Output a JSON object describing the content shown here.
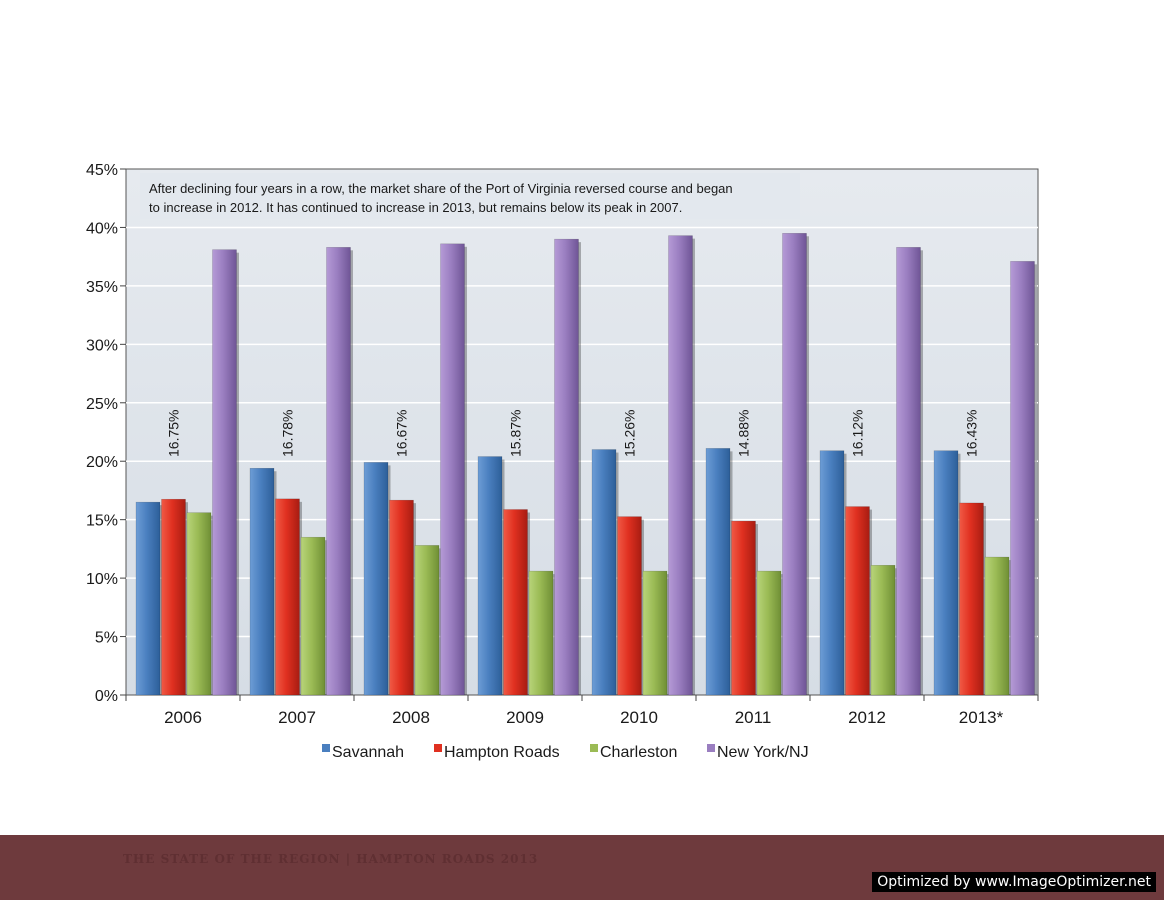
{
  "colors": {
    "Savannah": "#4a7fbf",
    "Hampton Roads": "#e03020",
    "Charleston": "#9bbb55",
    "New York/NJ": "#9a7ec0",
    "plot_background": "#dde3ea",
    "footer": "#6e3a3d"
  },
  "chart_data": {
    "type": "bar",
    "categories": [
      "2006",
      "2007",
      "2008",
      "2009",
      "2010",
      "2011",
      "2012",
      "2013*"
    ],
    "series": [
      {
        "name": "Savannah",
        "values": [
          16.5,
          19.4,
          19.9,
          20.4,
          21.0,
          21.1,
          20.9,
          20.9
        ]
      },
      {
        "name": "Hampton Roads",
        "values": [
          16.75,
          16.78,
          16.67,
          15.87,
          15.26,
          14.88,
          16.12,
          16.43
        ]
      },
      {
        "name": "Charleston",
        "values": [
          15.6,
          13.5,
          12.8,
          10.6,
          10.6,
          10.6,
          11.1,
          11.8
        ]
      },
      {
        "name": "New York/NJ",
        "values": [
          38.1,
          38.3,
          38.6,
          39.0,
          39.3,
          39.5,
          38.3,
          37.1
        ]
      }
    ],
    "data_labels": [
      "16.75%",
      "16.78%",
      "16.67%",
      "15.87%",
      "15.26%",
      "14.88%",
      "16.12%",
      "16.43%"
    ],
    "annotation": [
      "After declining four years in a row, the market share of the Port of Virginia reversed course and began",
      "to increase in 2012. It has continued to increase in 2013, but remains below its peak in 2007."
    ],
    "y_ticks": [
      "0%",
      "5%",
      "10%",
      "15%",
      "20%",
      "25%",
      "30%",
      "35%",
      "40%",
      "45%"
    ],
    "ylim": [
      0,
      45
    ],
    "grid": true,
    "legend_position": "bottom"
  },
  "footer_text": "THE STATE OF THE REGION  |  HAMPTON ROADS 2013",
  "watermark_text": "Optimized by www.ImageOptimizer.net"
}
